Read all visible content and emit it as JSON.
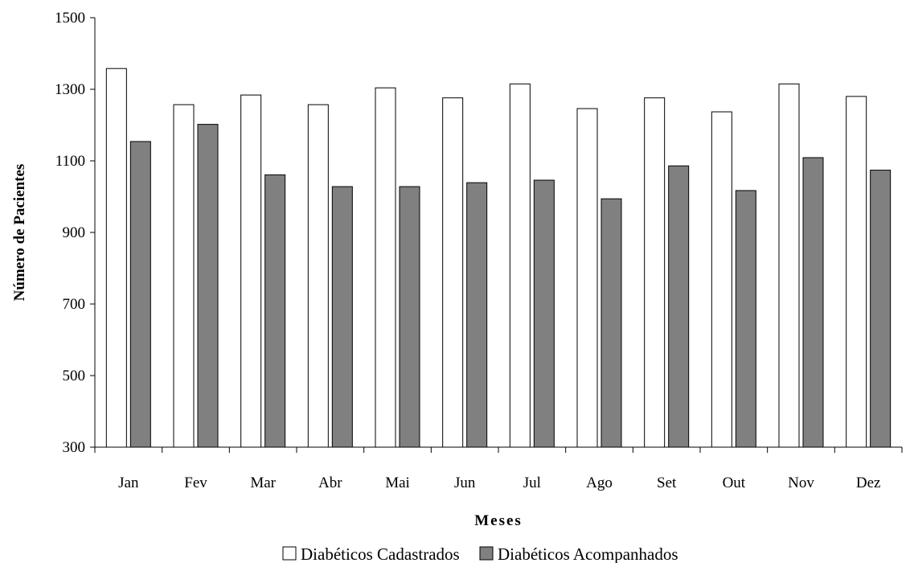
{
  "chart_data": {
    "type": "bar",
    "categories": [
      "Jan",
      "Fev",
      "Mar",
      "Abr",
      "Mai",
      "Jun",
      "Jul",
      "Ago",
      "Set",
      "Out",
      "Nov",
      "Dez"
    ],
    "series": [
      {
        "name": "Diabéticos Cadastrados",
        "color": "#ffffff",
        "values": [
          1358,
          1257,
          1284,
          1257,
          1304,
          1276,
          1315,
          1246,
          1276,
          1237,
          1315,
          1280
        ]
      },
      {
        "name": "Diabéticos Acompanhados",
        "color": "#808080",
        "values": [
          1154,
          1202,
          1061,
          1028,
          1028,
          1039,
          1046,
          994,
          1086,
          1017,
          1109,
          1074
        ]
      }
    ],
    "title": "",
    "xlabel": "Meses",
    "ylabel": "Número de Pacientes",
    "ylim": [
      300,
      1500
    ],
    "yticks": [
      "1500",
      "1300",
      "1100",
      "900",
      "700",
      "500",
      "300"
    ],
    "grid": false,
    "legend_position": "bottom"
  }
}
